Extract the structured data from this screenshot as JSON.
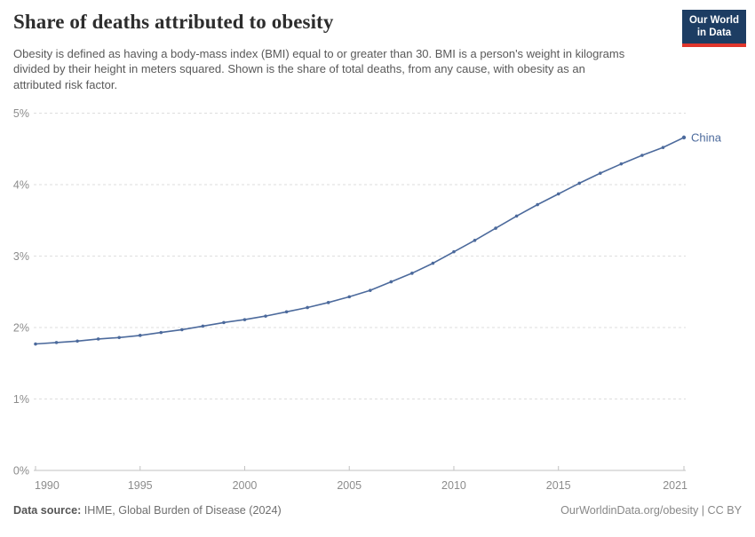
{
  "header": {
    "title": "Share of deaths attributed to obesity",
    "subtitle": "Obesity is defined as having a body-mass index (BMI) equal to or greater than 30. BMI is a person's weight in kilograms divided by their height in meters squared. Shown is the share of total deaths, from any cause, with obesity as an attributed risk factor.",
    "logo": {
      "line1": "Our World",
      "line2": "in Data",
      "bg_color": "#1d3d63",
      "accent_color": "#e0362c"
    }
  },
  "chart_data": {
    "type": "line",
    "title": "Share of deaths attributed to obesity",
    "xlabel": "",
    "ylabel": "",
    "xlim": [
      1990,
      2021
    ],
    "ylim": [
      0,
      5
    ],
    "grid": "horizontal-dashed",
    "legend_position": "end-of-line-label",
    "x_ticks": [
      1990,
      1995,
      2000,
      2005,
      2010,
      2015,
      2021
    ],
    "y_ticks": [
      "0%",
      "1%",
      "2%",
      "3%",
      "4%",
      "5%"
    ],
    "x": [
      1990,
      1991,
      1992,
      1993,
      1994,
      1995,
      1996,
      1997,
      1998,
      1999,
      2000,
      2001,
      2002,
      2003,
      2004,
      2005,
      2006,
      2007,
      2008,
      2009,
      2010,
      2011,
      2012,
      2013,
      2014,
      2015,
      2016,
      2017,
      2018,
      2019,
      2020,
      2021
    ],
    "series": [
      {
        "name": "China",
        "color": "#4c6a9c",
        "values": [
          1.77,
          1.79,
          1.81,
          1.84,
          1.86,
          1.89,
          1.93,
          1.97,
          2.02,
          2.07,
          2.11,
          2.16,
          2.22,
          2.28,
          2.35,
          2.43,
          2.52,
          2.64,
          2.76,
          2.9,
          3.06,
          3.22,
          3.39,
          3.56,
          3.72,
          3.87,
          4.02,
          4.16,
          4.29,
          4.41,
          4.52,
          4.66
        ]
      }
    ]
  },
  "footer": {
    "source_label": "Data source:",
    "source_text": " IHME, Global Burden of Disease (2024)",
    "credit": "OurWorldinData.org/obesity | CC BY"
  }
}
